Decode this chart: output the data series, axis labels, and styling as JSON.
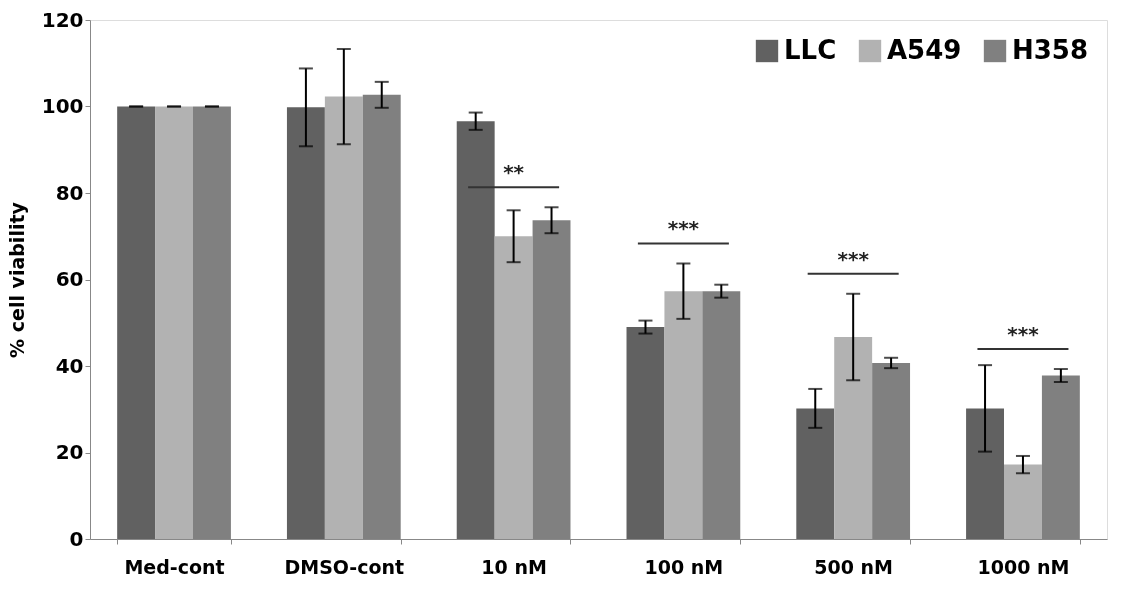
{
  "chart_data": {
    "type": "bar",
    "ylabel": "% cell viability",
    "categories": [
      "Med-cont",
      "DMSO-cont",
      "10 nM",
      "100 nM",
      "500 nM",
      "1000 nM"
    ],
    "series": [
      {
        "name": "LLC",
        "color": "#616161",
        "values": [
          100,
          99.8,
          96.6,
          49,
          30.2,
          30.2
        ],
        "errors": [
          0,
          9,
          2,
          1.5,
          4.5,
          10
        ]
      },
      {
        "name": "A549",
        "color": "#b2b2b2",
        "values": [
          100,
          102.3,
          70,
          57.3,
          46.7,
          17.2
        ],
        "errors": [
          0,
          11,
          6,
          6.4,
          10,
          2
        ]
      },
      {
        "name": "H358",
        "color": "#808080",
        "values": [
          100,
          102.7,
          73.7,
          57.3,
          40.7,
          37.8
        ],
        "errors": [
          0,
          3,
          3,
          1.5,
          1.2,
          1.5
        ]
      }
    ],
    "ylim": [
      0,
      120
    ],
    "yticks": [
      0,
      20,
      40,
      60,
      80,
      100,
      120
    ],
    "grid": false,
    "legend": "top right",
    "annotations": [
      "**",
      "***",
      "***",
      "***"
    ]
  }
}
